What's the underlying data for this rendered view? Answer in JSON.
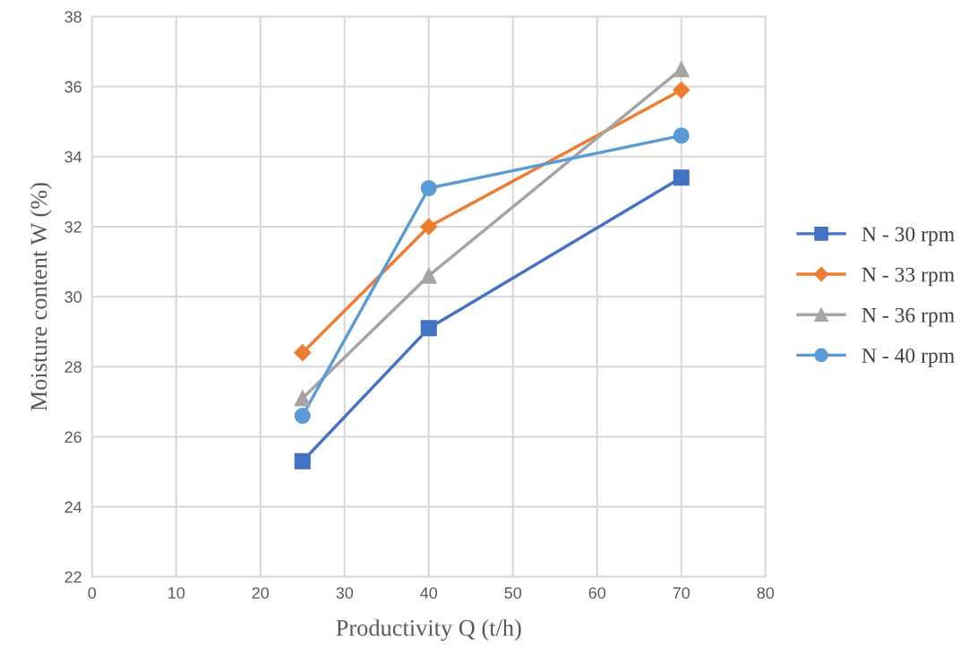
{
  "chart_data": {
    "type": "line",
    "xlabel": "Productivity Q (t/h)",
    "ylabel": "Moisture content W (%)",
    "x": [
      25,
      40,
      70
    ],
    "series": [
      {
        "name": "N - 30 rpm",
        "color": "#4472c4",
        "marker": "square",
        "values": [
          25.3,
          29.1,
          33.4
        ]
      },
      {
        "name": "N - 33 rpm",
        "color": "#ed7d31",
        "marker": "diamond",
        "values": [
          28.4,
          32.0,
          35.9
        ]
      },
      {
        "name": "N - 36 rpm",
        "color": "#a5a5a5",
        "marker": "triangle",
        "values": [
          27.1,
          30.6,
          36.5
        ]
      },
      {
        "name": "N - 40 rpm",
        "color": "#5b9bd5",
        "marker": "circle",
        "values": [
          26.6,
          33.1,
          34.6
        ]
      }
    ],
    "xlim": [
      0,
      80
    ],
    "xticks": [
      0,
      10,
      20,
      30,
      40,
      50,
      60,
      70,
      80
    ],
    "ylim": [
      22,
      38
    ],
    "yticks": [
      22,
      24,
      26,
      28,
      30,
      32,
      34,
      36,
      38
    ],
    "grid": true,
    "legend": "right",
    "line_style": "solid"
  }
}
